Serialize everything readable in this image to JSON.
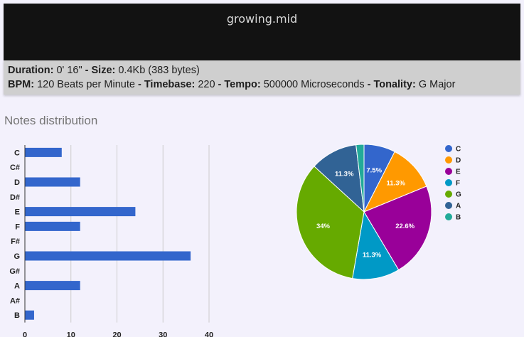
{
  "file": {
    "title": "growing.mid"
  },
  "info": {
    "line1": [
      {
        "label": "Duration:",
        "value": " 0' 16\" "
      },
      {
        "label": "- Size:",
        "value": " 0.4Kb (383 bytes)"
      }
    ],
    "line2": [
      {
        "label": "BPM:",
        "value": " 120 Beats per Minute "
      },
      {
        "label": "- Timebase:",
        "value": " 220 "
      },
      {
        "label": "- Tempo:",
        "value": " 500000 Microseconds "
      },
      {
        "label": "- Tonality:",
        "value": " G Major"
      }
    ]
  },
  "section": {
    "title": "Notes distribution"
  },
  "colors": {
    "bar": "#3366cc",
    "grid": "#cccccc"
  },
  "chart_data": [
    {
      "type": "bar",
      "orientation": "horizontal",
      "categories": [
        "C",
        "C#",
        "D",
        "D#",
        "E",
        "F",
        "F#",
        "G",
        "G#",
        "A",
        "A#",
        "B"
      ],
      "values": [
        8,
        0,
        12,
        0,
        24,
        12,
        0,
        36,
        0,
        12,
        0,
        2
      ],
      "xlim": [
        0,
        40
      ],
      "xticks": [
        0,
        10,
        20,
        30,
        40
      ],
      "grid": true
    },
    {
      "type": "pie",
      "slices": [
        {
          "label": "C",
          "value": 7.5,
          "color": "#3366cc",
          "text": "7.5%"
        },
        {
          "label": "D",
          "value": 11.3,
          "color": "#ff9900",
          "text": "11.3%"
        },
        {
          "label": "E",
          "value": 22.6,
          "color": "#990099",
          "text": "22.6%"
        },
        {
          "label": "F",
          "value": 11.3,
          "color": "#0099c6",
          "text": "11.3%"
        },
        {
          "label": "G",
          "value": 34,
          "color": "#66aa00",
          "text": "34%"
        },
        {
          "label": "A",
          "value": 11.3,
          "color": "#316395",
          "text": "11.3%"
        },
        {
          "label": "B",
          "value": 1.9,
          "color": "#22aa99",
          "text": ""
        }
      ],
      "legend": "right"
    }
  ]
}
